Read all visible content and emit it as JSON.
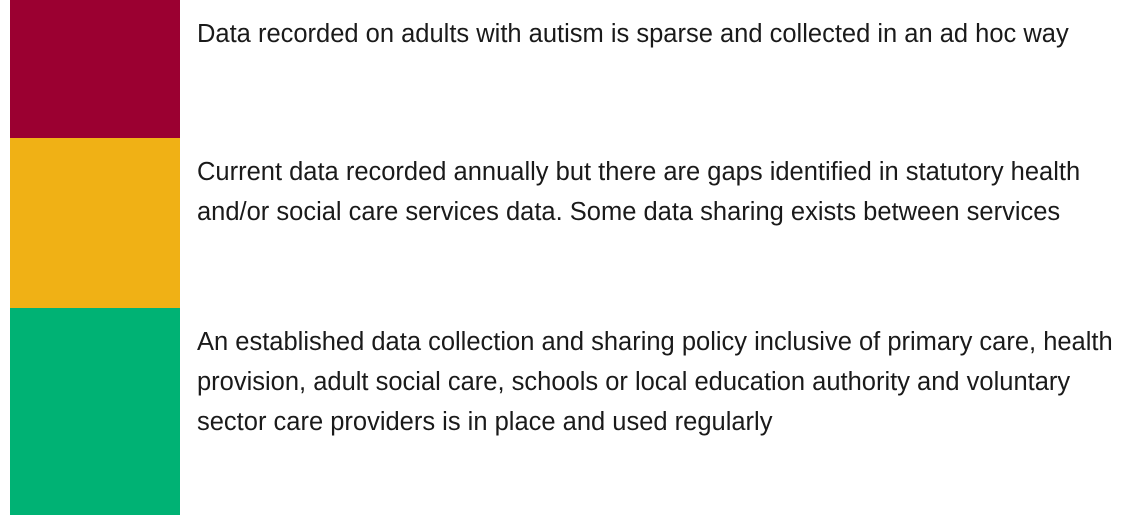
{
  "rows": [
    {
      "color": "#9b0031",
      "text": "Data recorded on adults with autism is sparse and collected in an ad hoc way"
    },
    {
      "color": "#f0b115",
      "text": "Current data recorded annually but there are gaps identified in statutory health and/or social care services data. Some data sharing exists between services"
    },
    {
      "color": "#00b274",
      "text": "An established data collection and sharing policy inclusive of primary care, health provision, adult social care, schools or local education authority and voluntary sector care providers is in place and used regularly"
    }
  ]
}
